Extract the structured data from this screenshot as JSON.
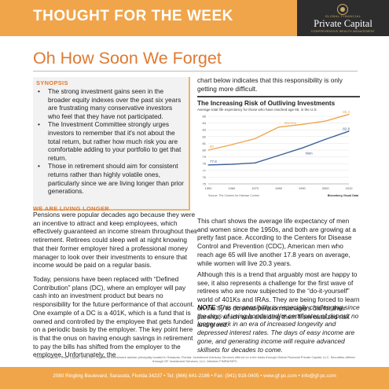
{
  "header": {
    "banner_title": "THOUGHT FOR THE WEEK",
    "logo_top": "GLOBAL FINANCIAL",
    "logo_name": "Private Capital",
    "logo_sub": "COMPREHENSIVE WEALTH MANAGEMENT"
  },
  "headline": "Oh How Soon We Forget",
  "synopsis": {
    "title": "SYNOPSIS",
    "items": [
      "The strong investment gains seen in the broader equity indexes over the past six years are frustrating many conservative investors who feel that they have not participated.",
      "The Investment Committee strongly urges investors to remember that it's not about the total return, but rather how much risk you are comfortable adding to your portfolio to get that return.",
      "Those in retirement should aim for consistent returns rather than highly volatile ones, particularly since we are living longer than prior generations."
    ]
  },
  "section": {
    "title": "WE ARE LIVING LONGER",
    "p1": "Pensions were popular decades ago because they were an incentive to attract and keep employees, which effectively guaranteed an income stream throughout their retirement. Retirees could sleep well at night knowing that their former employer hired a professional money manager to look over their investments to ensure that income would be paid on a regular basis.",
    "p2": "Today, pensions have been replaced with “Defined Contribution” plans (DC), where an employer will pay cash into an investment product but bears no responsibility for the future performance of that account. One example of a DC is a 401K, which is a fund that is owned and controlled by the employee that gets funded on a periodic basis by the employer. The key point here is that the onus on having enough savings in retirement to pay the bills has shifted from the employer to the employee. Unfortunately, the"
  },
  "right": {
    "p1": "chart below indicates that this responsibility is only getting more difficult.",
    "p2": "This chart shows the average life expectancy of men and women since the 1950s, and both are growing at a pretty fast pace. According to the Centers for Disease Control and Prevention (CDC), American men who reach age 65 will live another 17.8 years on average, while women will live 20.3 years.",
    "p3": "Although this is a trend that arguably most are happy to see, it also represents a challenge for the first wave of retirees who are now subjected to the “do-it-yourself” world of 401Ks and IRAs. They are being forced to learn on the fly to do what pension managers did for their parents, which was shielding them from outsized risk and greed.",
    "note_label": "NOTE",
    "note_text": ": This responsibility is especially challenging since the days of using bonds and/or certificates of deposit no longer work in an era of increased longevity and depressed interest rates. The days of easy income are gone, and generating income will require advanced skillsets for decades to come."
  },
  "chart_data": {
    "type": "line",
    "title": "The Increasing Risk of Outliving Investments",
    "subtitle": "Average total life expectancy for those who have reached age 65, in the U.S.",
    "ylabel": "",
    "xlabel": "",
    "x": [
      1950,
      1960,
      1970,
      1980,
      1990,
      2000,
      2010
    ],
    "x_ticks": [
      1950,
      1960,
      1970,
      1980,
      1990,
      2000,
      2010
    ],
    "y_ticks": [
      75,
      76,
      77,
      78,
      79,
      80,
      81,
      82,
      83,
      84,
      85
    ],
    "ylim": [
      75,
      85
    ],
    "grid": true,
    "series": [
      {
        "name": "Women",
        "color": "#f0a54a",
        "values": [
          80.0,
          80.8,
          81.7,
          83.4,
          83.8,
          84.3,
          85.3
        ],
        "start_label": "80",
        "end_label": "85.3"
      },
      {
        "name": "Men",
        "color": "#3e5f95",
        "values": [
          77.8,
          77.9,
          78.1,
          79.2,
          80.3,
          81.6,
          82.8
        ],
        "start_label": "77.8",
        "end_label": "82.8"
      }
    ],
    "source": "Source: The Centers for Disease Control",
    "credit": "Bloomberg Visual Data"
  },
  "disclaimer": "Global Financial Private Capital, is an SEC registered investment adviser principally located in Sarasota, Florida. Investment Advisory Services offered on a fee basis through Global Financial Private Capital, LLC. Securities offered through GF Investment Services, LLC, Member FINRA/SIPC.",
  "footer": "2080 Ringling Boulevard, Sarasota, Florida 34237 • Tel: (866) 641-2186 • Fax: (941) 918-0405 • www.gf-pc.com • info@gf-pc.com"
}
